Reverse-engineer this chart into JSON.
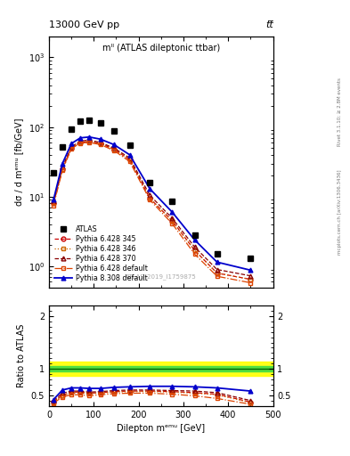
{
  "title_top": "13000 GeV pp",
  "title_top_right": "tt̅",
  "plot_title": "mˡˡ (ATLAS dileptonic ttbar)",
  "xlabel": "Dilepton mᵉᵐᵘ [GeV]",
  "ylabel_main": "dσ / d mᵉᵐᵘ [fb/GeV]",
  "ylabel_ratio": "Ratio to ATLAS",
  "watermark": "ATLAS_2019_I1759875",
  "right_label": "mcplots.cern.ch [arXiv:1306.3436]",
  "right_label2": "Rivet 3.1.10; ≥ 2.8M events",
  "x_centers": [
    10,
    30,
    50,
    70,
    90,
    115,
    145,
    180,
    225,
    275,
    325,
    375,
    450
  ],
  "atlas_y": [
    22,
    52,
    93,
    120,
    125,
    115,
    88,
    55,
    16,
    8.5,
    2.8,
    1.5,
    1.3
  ],
  "py6_345_y": [
    8,
    25,
    50,
    60,
    62,
    58,
    48,
    34,
    9.5,
    4.5,
    1.7,
    0.8,
    0.65
  ],
  "py6_346_y": [
    8,
    25,
    50,
    60,
    62,
    58,
    48,
    34,
    9.5,
    4.5,
    1.7,
    0.8,
    0.65
  ],
  "py6_370_y": [
    8.5,
    27,
    52,
    63,
    65,
    60,
    50,
    36,
    10.5,
    4.9,
    1.9,
    0.9,
    0.73
  ],
  "py6_def_y": [
    7.5,
    24,
    49,
    59,
    60,
    56,
    46,
    32,
    9.0,
    4.1,
    1.5,
    0.72,
    0.58
  ],
  "py8_def_y": [
    9,
    30,
    58,
    70,
    72,
    67,
    56,
    40,
    13,
    6.0,
    2.4,
    1.15,
    0.88
  ],
  "ratio_py6_345": [
    0.38,
    0.5,
    0.56,
    0.56,
    0.54,
    0.55,
    0.57,
    0.58,
    0.58,
    0.57,
    0.55,
    0.52,
    0.37
  ],
  "ratio_py6_346": [
    0.37,
    0.49,
    0.55,
    0.55,
    0.53,
    0.54,
    0.56,
    0.57,
    0.57,
    0.56,
    0.54,
    0.51,
    0.36
  ],
  "ratio_py6_370": [
    0.4,
    0.54,
    0.58,
    0.58,
    0.56,
    0.57,
    0.59,
    0.6,
    0.6,
    0.59,
    0.58,
    0.55,
    0.4
  ],
  "ratio_py6_def": [
    0.35,
    0.47,
    0.51,
    0.51,
    0.49,
    0.51,
    0.53,
    0.54,
    0.54,
    0.52,
    0.49,
    0.44,
    0.33
  ],
  "ratio_py8_def": [
    0.42,
    0.6,
    0.64,
    0.64,
    0.63,
    0.63,
    0.65,
    0.66,
    0.67,
    0.67,
    0.66,
    0.64,
    0.58
  ],
  "atlas_band_green_lo": 0.95,
  "atlas_band_green_hi": 1.05,
  "atlas_band_yellow_lo": 0.87,
  "atlas_band_yellow_hi": 1.13,
  "color_py6_345": "#cc0000",
  "color_py6_346": "#cc6600",
  "color_py6_370": "#880000",
  "color_py6_def": "#dd4400",
  "color_py8_def": "#0000cc",
  "color_atlas": "#000000",
  "xlim": [
    0,
    500
  ],
  "ylim_main_log": [
    0.5,
    2000
  ],
  "ylim_ratio": [
    0.3,
    2.2
  ]
}
